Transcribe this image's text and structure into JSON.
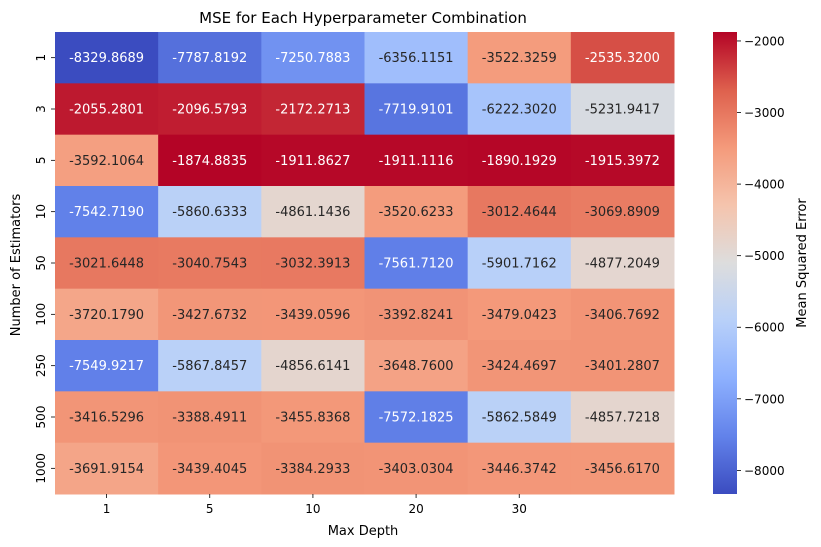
{
  "chart_data": {
    "type": "heatmap",
    "title": "MSE for Each Hyperparameter Combination",
    "xlabel": "Max Depth",
    "ylabel": "Number of Estimators",
    "x_tick_labels": [
      "1",
      "5",
      "10",
      "20",
      "30",
      ""
    ],
    "y_tick_labels": [
      "1",
      "3",
      "5",
      "10",
      "50",
      "100",
      "250",
      "500",
      "1000"
    ],
    "values": [
      [
        -8329.8689,
        -7787.8192,
        -7250.7883,
        -6356.1151,
        -3522.3259,
        -2535.32
      ],
      [
        -2055.2801,
        -2096.5793,
        -2172.2713,
        -7719.9101,
        -6222.302,
        -5231.9417
      ],
      [
        -3592.1064,
        -1874.8835,
        -1911.8627,
        -1911.1116,
        -1890.1929,
        -1915.3972
      ],
      [
        -7542.719,
        -5860.6333,
        -4861.1436,
        -3520.6233,
        -3012.4644,
        -3069.8909
      ],
      [
        -3021.6448,
        -3040.7543,
        -3032.3913,
        -7561.712,
        -5901.7162,
        -4877.2049
      ],
      [
        -3720.179,
        -3427.6732,
        -3439.0596,
        -3392.8241,
        -3479.0423,
        -3406.7692
      ],
      [
        -7549.9217,
        -5867.8457,
        -4856.6141,
        -3648.76,
        -3424.4697,
        -3401.2807
      ],
      [
        -3416.5296,
        -3388.4911,
        -3455.8368,
        -7572.1825,
        -5862.5849,
        -4857.7218
      ],
      [
        -3691.9154,
        -3439.4045,
        -3384.2933,
        -3403.0304,
        -3446.3742,
        -3456.617
      ]
    ],
    "colormap": "coolwarm",
    "vmin": -8329.8689,
    "vmax": -1874.8835,
    "colorbar": {
      "label": "Mean Squared Error",
      "ticks": [
        -8000,
        -7000,
        -6000,
        -5000,
        -4000,
        -3000,
        -2000
      ],
      "tick_labels": [
        "−8000",
        "−7000",
        "−6000",
        "−5000",
        "−4000",
        "−3000",
        "−2000"
      ]
    }
  }
}
